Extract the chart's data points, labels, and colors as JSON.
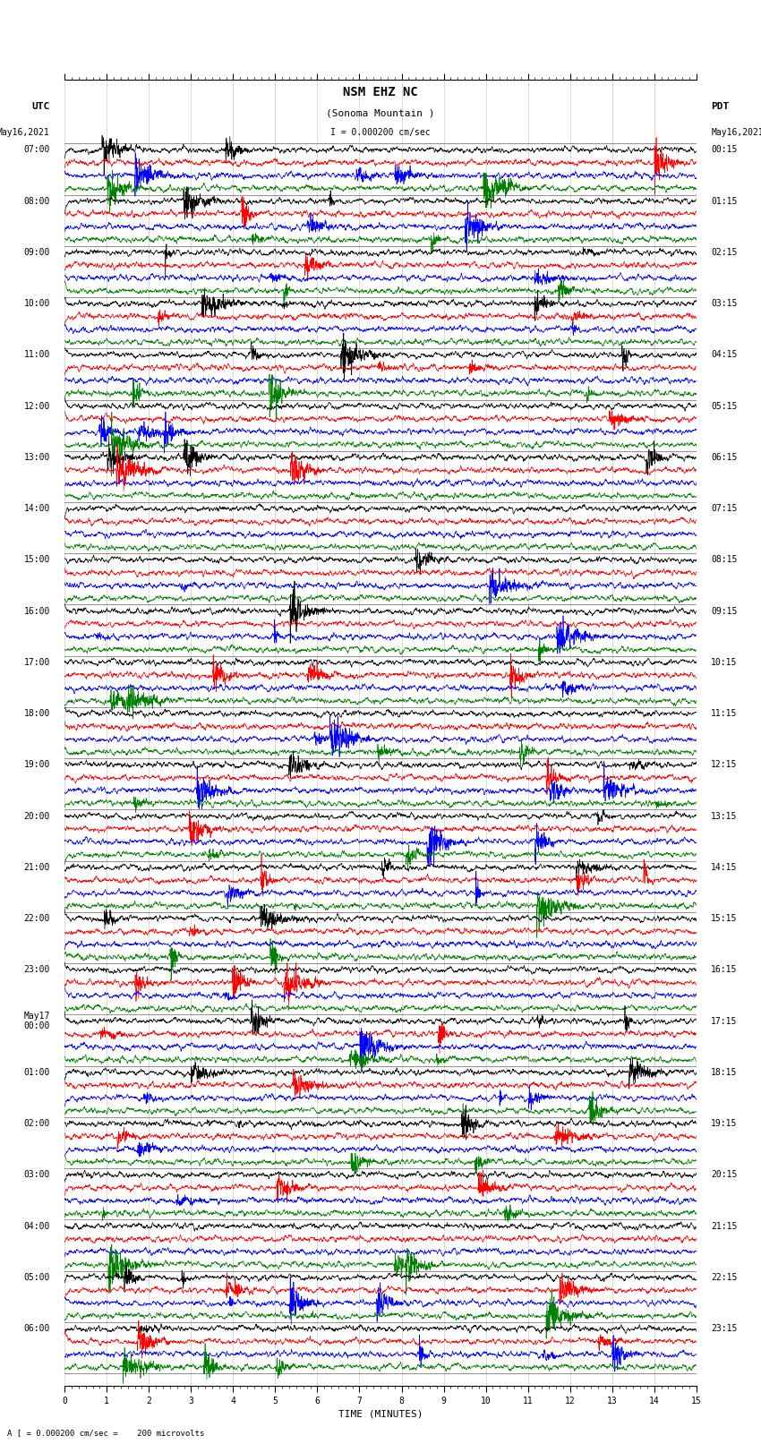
{
  "title_line1": "NSM EHZ NC",
  "title_line2": "(Sonoma Mountain )",
  "scale_text": "I = 0.000200 cm/sec",
  "left_header": "UTC",
  "left_date": "May16,2021",
  "right_header": "PDT",
  "right_date": "May16,2021",
  "bottom_label": "TIME (MINUTES)",
  "bottom_note": "A [ = 0.000200 cm/sec =    200 microvolts",
  "utc_labels": [
    "07:00",
    "08:00",
    "09:00",
    "10:00",
    "11:00",
    "12:00",
    "13:00",
    "14:00",
    "15:00",
    "16:00",
    "17:00",
    "18:00",
    "19:00",
    "20:00",
    "21:00",
    "22:00",
    "23:00",
    "May17\n00:00",
    "01:00",
    "02:00",
    "03:00",
    "04:00",
    "05:00",
    "06:00"
  ],
  "pdt_labels": [
    "00:15",
    "01:15",
    "02:15",
    "03:15",
    "04:15",
    "05:15",
    "06:15",
    "07:15",
    "08:15",
    "09:15",
    "10:15",
    "11:15",
    "12:15",
    "13:15",
    "14:15",
    "15:15",
    "16:15",
    "17:15",
    "18:15",
    "19:15",
    "20:15",
    "21:15",
    "22:15",
    "23:15"
  ],
  "colors": [
    "black",
    "red",
    "blue",
    "green"
  ],
  "n_hours": 24,
  "traces_per_hour": 4,
  "n_rows": 96,
  "xlim": [
    0,
    15
  ],
  "bg_color": "white",
  "font_family": "monospace",
  "font_size_title": 10,
  "font_size_label": 8,
  "font_size_tick": 7,
  "trace_lw": 0.5,
  "amplitude": 0.44,
  "n_points": 2700
}
